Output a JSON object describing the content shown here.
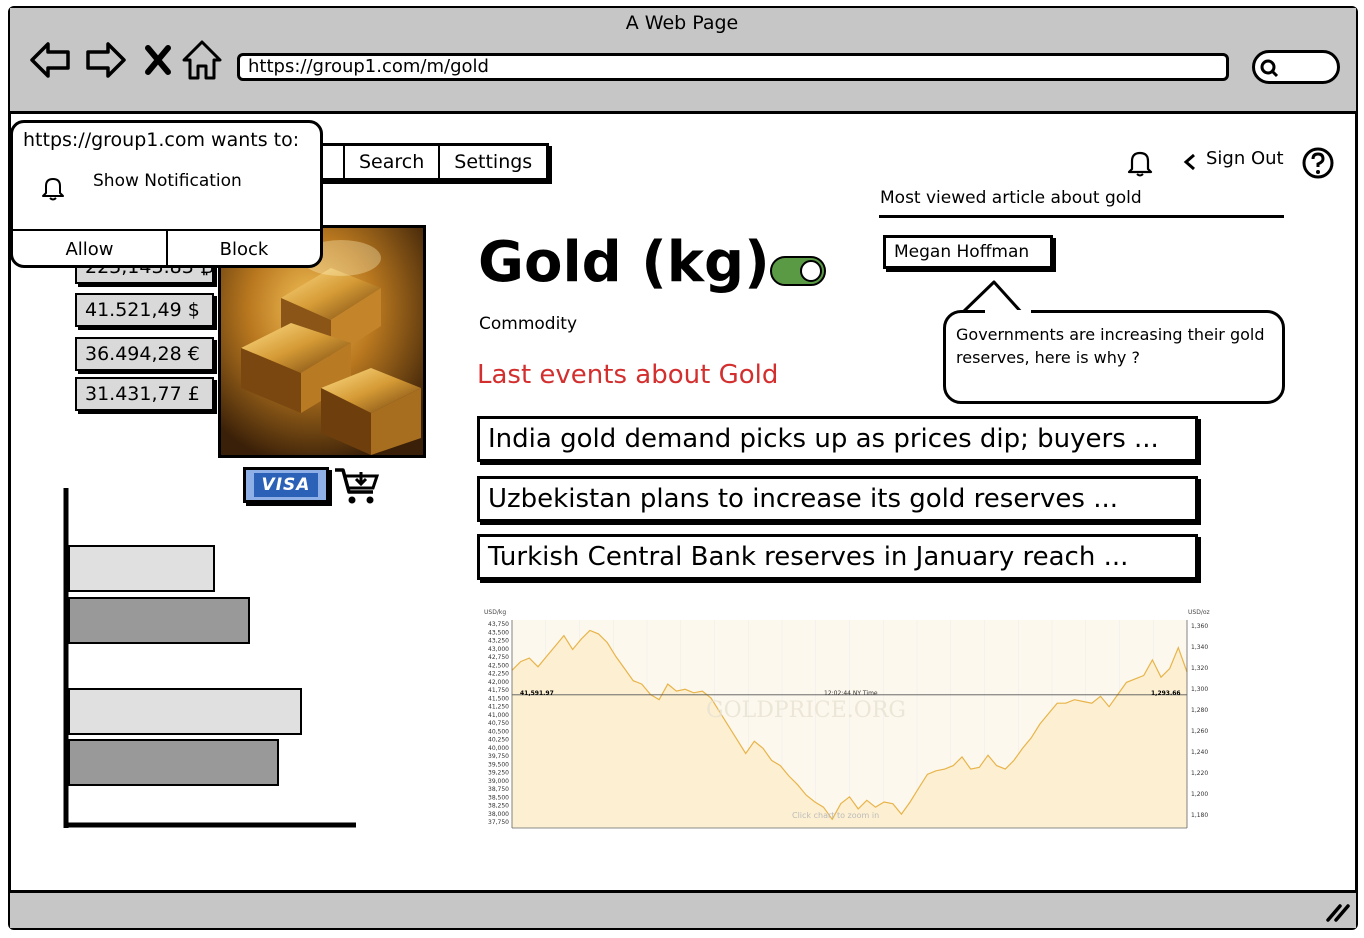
{
  "window": {
    "title": "A Web Page",
    "url": "https://group1.com/m/gold"
  },
  "menu": {
    "items": [
      "Search",
      "Settings"
    ]
  },
  "header": {
    "sign_out_label": "Sign Out"
  },
  "popup": {
    "title": "https://group1.com wants to:",
    "permission": "Show Notification",
    "allow_label": "Allow",
    "block_label": "Block"
  },
  "prices": {
    "items": [
      "223,143.83 ₿",
      "41.521,49 $",
      "36.494,28 €",
      "31.431,77 £"
    ]
  },
  "payment": {
    "card_label": "VISA"
  },
  "main": {
    "title": "Gold (kg)",
    "subtitle": "Commodity",
    "events_title": "Last events about Gold",
    "events_title_color": "#d32f2f",
    "news": [
      "India gold demand picks up as prices dip; buyers ...",
      "Uzbekistan plans to increase its gold reserves ...",
      "Turkish Central Bank reserves in January reach ..."
    ],
    "toggle_on": true,
    "toggle_color": "#5a9a45"
  },
  "side": {
    "most_viewed_label": "Most viewed article about gold",
    "author": "Megan Hoffman",
    "quote": "Governments are increasing their gold reserves, here is why ?"
  },
  "bar_widget": {
    "values": [
      0.5,
      0.62,
      0.8,
      0.72
    ],
    "colors": [
      "#e0e0e0",
      "#999999",
      "#e0e0e0",
      "#999999"
    ]
  },
  "chart_data": {
    "type": "area",
    "ylabel_left": "USD/kg",
    "ylabel_right": "USD/oz",
    "left_ticks": [
      "43,750",
      "43,500",
      "43,250",
      "43,000",
      "42,750",
      "42,500",
      "42,250",
      "42,000",
      "41,750",
      "41,500",
      "41,250",
      "41,000",
      "40,750",
      "40,500",
      "40,250",
      "40,000",
      "39,750",
      "39,500",
      "39,250",
      "39,000",
      "38,750",
      "38,500",
      "38,250",
      "38,000",
      "37,750"
    ],
    "right_ticks": [
      "1,360",
      "1,340",
      "1,320",
      "1,300",
      "1,280",
      "1,260",
      "1,240",
      "1,220",
      "1,200",
      "1,180"
    ],
    "ylim": [
      37750,
      43750
    ],
    "values": [
      42300,
      42550,
      42650,
      42400,
      42700,
      43000,
      43300,
      42900,
      43200,
      43450,
      43350,
      43100,
      42700,
      42350,
      42000,
      41900,
      41600,
      41450,
      41900,
      41700,
      41750,
      41650,
      41700,
      41500,
      41100,
      40700,
      40300,
      39900,
      40250,
      40050,
      39700,
      39550,
      39250,
      39000,
      38700,
      38500,
      38350,
      38000,
      38450,
      38650,
      38300,
      38550,
      38350,
      38500,
      38450,
      38150,
      38500,
      38900,
      39300,
      39400,
      39450,
      39550,
      39800,
      39450,
      39500,
      39850,
      39550,
      39450,
      39700,
      40050,
      40350,
      40750,
      41050,
      41350,
      41350,
      41450,
      41400,
      41350,
      41550,
      41250,
      41600,
      41950,
      42050,
      42150,
      42600,
      42100,
      42350,
      42950,
      42250
    ],
    "current_left_label": "41,591.97",
    "current_right_label": "1,293.66",
    "current_value": 41591.97,
    "time_label": "12:02:44 NY Time",
    "watermark": "GOLDPRICE.ORG",
    "hint": "Click chart to zoom in",
    "fill_color": "#fdf0d2",
    "line_color": "#e8b44a"
  }
}
